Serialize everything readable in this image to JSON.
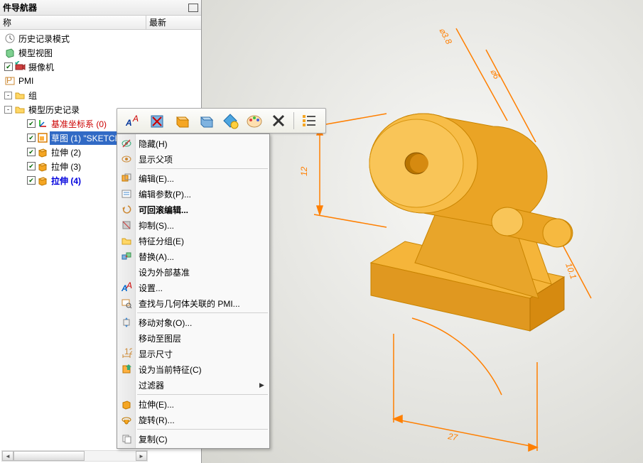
{
  "panel": {
    "title": "件导航器",
    "columns": {
      "name": "称",
      "latest": "最新"
    }
  },
  "tree": {
    "items": [
      {
        "indent": 0,
        "icon": "clock",
        "label": "历史记录模式"
      },
      {
        "indent": 0,
        "icon": "model-view",
        "label": "模型视图"
      },
      {
        "indent": 0,
        "icon": "camera",
        "label": "摄像机",
        "check": true
      },
      {
        "indent": 0,
        "icon": "pmi",
        "label": "PMI"
      },
      {
        "indent": 0,
        "icon": "folder",
        "label": "组",
        "expander": "-"
      },
      {
        "indent": 0,
        "icon": "folder",
        "label": "模型历史记录",
        "expander": "-"
      },
      {
        "indent": 1,
        "icon": "csys",
        "label": "基准坐标系 (0)",
        "check": true,
        "color": "red"
      },
      {
        "indent": 1,
        "icon": "sketch",
        "label": "草图 (1) \"SKETCH_000",
        "check": true,
        "selected": true
      },
      {
        "indent": 1,
        "icon": "extrude",
        "label": "拉伸 (2)",
        "check": true
      },
      {
        "indent": 1,
        "icon": "extrude",
        "label": "拉伸 (3)",
        "check": true
      },
      {
        "indent": 1,
        "icon": "extrude",
        "label": "拉伸 (4)",
        "check": true,
        "color": "blue"
      }
    ]
  },
  "toolbar": {
    "buttons": [
      "font",
      "box-x",
      "box-orange",
      "box-blue",
      "diamond",
      "palette",
      "x",
      "list"
    ]
  },
  "menu": [
    {
      "type": "item",
      "icon": "eye-off",
      "text": "隐藏(H)"
    },
    {
      "type": "item",
      "icon": "eye",
      "text": "显示父项"
    },
    {
      "type": "sep"
    },
    {
      "type": "item",
      "icon": "edit",
      "text": "编辑(E)..."
    },
    {
      "type": "item",
      "icon": "params",
      "text": "编辑参数(P)..."
    },
    {
      "type": "item",
      "icon": "rollback",
      "text": "可回滚编辑...",
      "bold": true
    },
    {
      "type": "item",
      "icon": "suppress",
      "text": "抑制(S)..."
    },
    {
      "type": "item",
      "icon": "group",
      "text": "特征分组(E)"
    },
    {
      "type": "item",
      "icon": "replace",
      "text": "替换(A)..."
    },
    {
      "type": "item",
      "icon": "",
      "text": "设为外部基准"
    },
    {
      "type": "item",
      "icon": "settings",
      "text": "设置..."
    },
    {
      "type": "item",
      "icon": "find-pmi",
      "text": "查找与几何体关联的 PMI..."
    },
    {
      "type": "sep"
    },
    {
      "type": "item",
      "icon": "move",
      "text": "移动对象(O)..."
    },
    {
      "type": "item",
      "icon": "",
      "text": "移动至图层"
    },
    {
      "type": "item",
      "icon": "dim",
      "text": "显示尺寸"
    },
    {
      "type": "item",
      "icon": "current",
      "text": "设为当前特征(C)"
    },
    {
      "type": "item",
      "icon": "",
      "text": "过滤器",
      "arrow": true
    },
    {
      "type": "sep"
    },
    {
      "type": "item",
      "icon": "extrude-m",
      "text": "拉伸(E)..."
    },
    {
      "type": "item",
      "icon": "revolve",
      "text": "旋转(R)..."
    },
    {
      "type": "sep"
    },
    {
      "type": "item",
      "icon": "copy",
      "text": "复制(C)"
    }
  ],
  "dimensions": {
    "d1": "12",
    "d2": "27",
    "d3": "⌀3.8",
    "d4": "⌀6",
    "d5": "10.1"
  },
  "colors": {
    "accent": "#f5a623",
    "dim": "#ff7f00",
    "selection": "#316ac5"
  }
}
